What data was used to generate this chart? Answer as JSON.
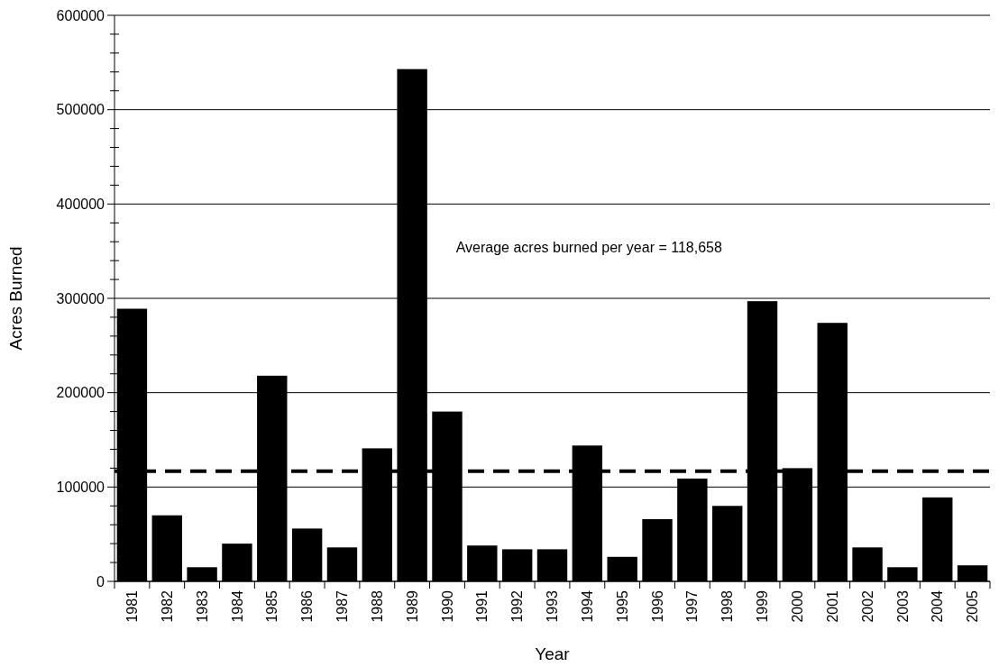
{
  "chart_data": {
    "type": "bar",
    "xlabel": "Year",
    "ylabel": "Acres Burned",
    "categories": [
      "1981",
      "1982",
      "1983",
      "1984",
      "1985",
      "1986",
      "1987",
      "1988",
      "1989",
      "1990",
      "1991",
      "1992",
      "1993",
      "1994",
      "1995",
      "1996",
      "1997",
      "1998",
      "1999",
      "2000",
      "2001",
      "2002",
      "2003",
      "2004",
      "2005"
    ],
    "values": [
      289000,
      70000,
      15000,
      40000,
      218000,
      56000,
      36000,
      141000,
      543000,
      180000,
      38000,
      34000,
      34000,
      144000,
      26000,
      66000,
      109000,
      80000,
      297000,
      120000,
      274000,
      36000,
      15000,
      89000,
      17000
    ],
    "color": "#000000",
    "ylim": [
      0,
      600000
    ],
    "yticks": [
      0,
      {
        "value": 20000,
        "label": null
      },
      {
        "value": 40000,
        "label": null
      },
      {
        "value": 60000,
        "label": null
      },
      {
        "value": 80000,
        "label": null
      },
      100000,
      {
        "value": 120000,
        "label": null
      },
      {
        "value": 140000,
        "label": null
      },
      {
        "value": 160000,
        "label": null
      },
      {
        "value": 180000,
        "label": null
      },
      200000,
      {
        "value": 220000,
        "label": null
      },
      {
        "value": 240000,
        "label": null
      },
      {
        "value": 260000,
        "label": null
      },
      {
        "value": 280000,
        "label": null
      },
      300000,
      {
        "value": 320000,
        "label": null
      },
      {
        "value": 340000,
        "label": null
      },
      {
        "value": 360000,
        "label": null
      },
      {
        "value": 380000,
        "label": null
      },
      400000,
      {
        "value": 420000,
        "label": null
      },
      {
        "value": 440000,
        "label": null
      },
      {
        "value": 460000,
        "label": null
      },
      {
        "value": 480000,
        "label": null
      },
      500000,
      {
        "value": 520000,
        "label": null
      },
      {
        "value": 540000,
        "label": null
      },
      {
        "value": 560000,
        "label": null
      },
      {
        "value": 580000,
        "label": null
      },
      600000
    ],
    "grid": "y",
    "ref_lines": [
      {
        "axis": "y",
        "value": 116700,
        "color": "#000000",
        "line_style": "dashed"
      }
    ],
    "annotations": [
      "Average acres burned per year = 118,658"
    ]
  }
}
